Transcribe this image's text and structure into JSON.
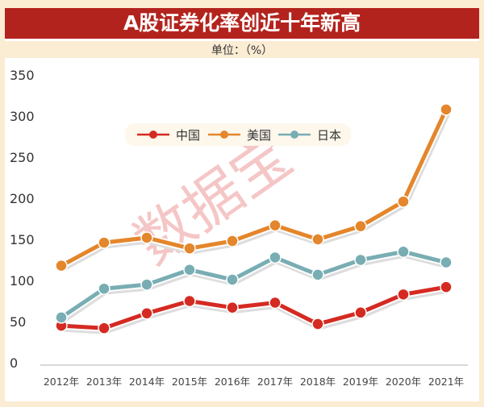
{
  "chart_data": {
    "type": "line",
    "title": "A股证券化率创近十年新高",
    "unit_label": "单位：（%）",
    "categories": [
      "2012年",
      "2013年",
      "2014年",
      "2015年",
      "2016年",
      "2017年",
      "2018年",
      "2019年",
      "2020年",
      "2021年"
    ],
    "ylim": [
      0,
      350
    ],
    "yticks": [
      0,
      50,
      100,
      150,
      200,
      250,
      300,
      350
    ],
    "grid": false,
    "legend": "top-center",
    "series": [
      {
        "name": "中国",
        "color": "#d42a22",
        "values": [
          45,
          42,
          60,
          75,
          67,
          73,
          47,
          61,
          83,
          92
        ]
      },
      {
        "name": "美国",
        "color": "#e4862b",
        "values": [
          118,
          146,
          152,
          139,
          148,
          167,
          150,
          166,
          196,
          308
        ]
      },
      {
        "name": "日本",
        "color": "#78adb3",
        "values": [
          55,
          90,
          95,
          113,
          101,
          128,
          107,
          125,
          135,
          122
        ]
      }
    ]
  },
  "watermark": "数据宝"
}
